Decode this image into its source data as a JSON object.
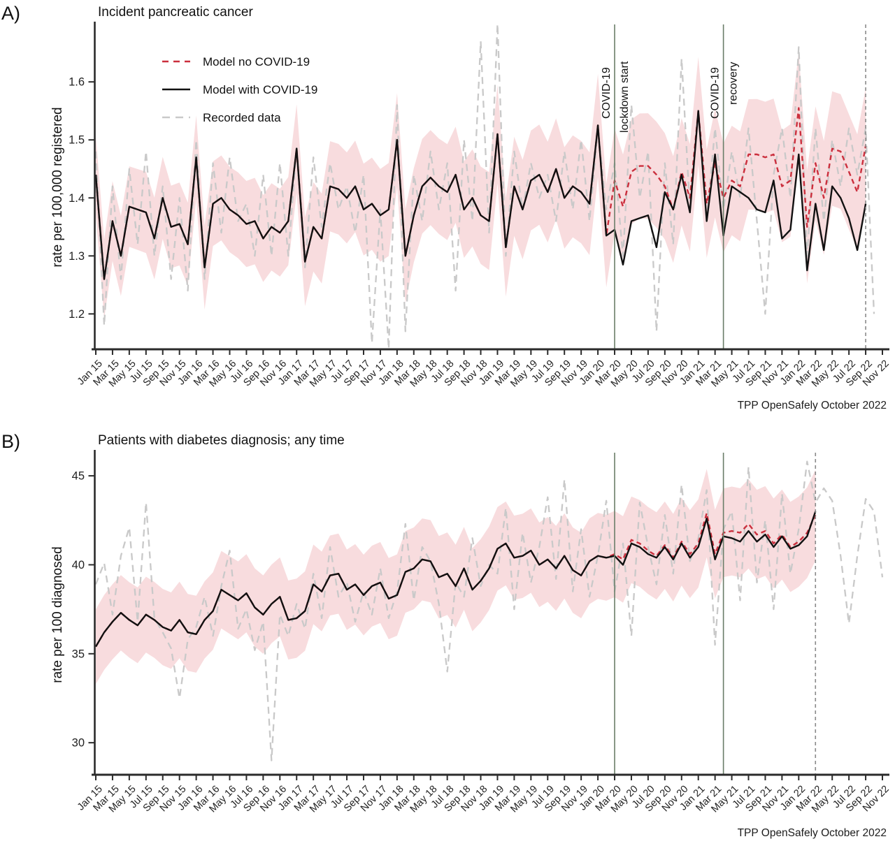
{
  "colors": {
    "model_no_covid": "#cb2f3d",
    "model_with_covid": "#111111",
    "recorded": "#c9c9c9",
    "ci_band": "#f8dcde",
    "event_line": "#6a7d68",
    "event_text": "#3f6b39",
    "model_end_line": "#8a8a8a",
    "axis": "#2b2b2b"
  },
  "legend": {
    "items": [
      {
        "label": "Model no COVID-19"
      },
      {
        "label": "Model with COVID-19"
      },
      {
        "label": "Recorded data"
      }
    ]
  },
  "x_tick_labels": [
    "Jan 15",
    "Mar 15",
    "May 15",
    "Jul 15",
    "Sep 15",
    "Nov 15",
    "Jan 16",
    "Mar 16",
    "May 16",
    "Jul 16",
    "Sep 16",
    "Nov 16",
    "Jan 17",
    "Mar 17",
    "May 17",
    "Jul 17",
    "Sep 17",
    "Nov 17",
    "Jan 18",
    "Mar 18",
    "May 18",
    "Jul 18",
    "Sep 18",
    "Nov 18",
    "Jan 19",
    "Mar 19",
    "May 19",
    "Jul 19",
    "Sep 19",
    "Nov 19",
    "Jan 20",
    "Mar 20",
    "May 20",
    "Jul 20",
    "Sep 20",
    "Nov 20",
    "Jan 21",
    "Mar 21",
    "May 21",
    "Jul 21",
    "Sep 21",
    "Nov 21",
    "Jan 22",
    "Mar 22",
    "May 22",
    "Jul 22",
    "Sep 22",
    "Nov 22"
  ],
  "chart_data": [
    {
      "type": "line",
      "panel_label": "A)",
      "title": "Incident pancreatic cancer",
      "ylabel": "rate per 100,000 registered",
      "source": "TPP OpenSafely October 2022",
      "x_months": {
        "start": "Jan 2015",
        "end": "Nov 2022",
        "step": "1 month"
      },
      "y_ticks": [
        1.2,
        1.3,
        1.4,
        1.5,
        1.6
      ],
      "y_tick_format": "1dp",
      "y_domain": [
        1.139,
        1.699
      ],
      "ci_half_width": [
        0.068,
        0.1
      ],
      "annotations": {
        "vlines": [
          {
            "month": 62,
            "type": "event",
            "labels": [
              "COVID-19",
              "lockdown start"
            ]
          },
          {
            "month": 75,
            "type": "event",
            "labels": [
              "COVID-19",
              "recovery"
            ]
          },
          {
            "month": 92,
            "type": "model-end",
            "labels": []
          }
        ]
      },
      "series": {
        "model_no_covid": {
          "name": "Model no COVID-19",
          "values": [
            1.44,
            1.26,
            1.36,
            1.3,
            1.385,
            1.38,
            1.375,
            1.33,
            1.4,
            1.35,
            1.355,
            1.32,
            1.47,
            1.28,
            1.39,
            1.4,
            1.38,
            1.37,
            1.355,
            1.36,
            1.33,
            1.35,
            1.34,
            1.36,
            1.485,
            1.29,
            1.35,
            1.33,
            1.42,
            1.415,
            1.4,
            1.42,
            1.38,
            1.39,
            1.37,
            1.38,
            1.5,
            1.3,
            1.37,
            1.42,
            1.435,
            1.42,
            1.41,
            1.44,
            1.38,
            1.4,
            1.37,
            1.36,
            1.51,
            1.315,
            1.42,
            1.38,
            1.43,
            1.44,
            1.41,
            1.45,
            1.4,
            1.42,
            1.41,
            1.39,
            1.525,
            1.335,
            1.43,
            1.385,
            1.445,
            1.455,
            1.455,
            1.44,
            1.42,
            1.38,
            1.445,
            1.4,
            1.55,
            1.39,
            1.46,
            1.4,
            1.43,
            1.42,
            1.475,
            1.475,
            1.47,
            1.475,
            1.42,
            1.43,
            1.555,
            1.35,
            1.46,
            1.4,
            1.485,
            1.48,
            1.445,
            1.41,
            1.49
          ]
        },
        "model_with_covid": {
          "name": "Model with COVID-19",
          "values": [
            1.44,
            1.26,
            1.36,
            1.3,
            1.385,
            1.38,
            1.375,
            1.33,
            1.4,
            1.35,
            1.355,
            1.32,
            1.47,
            1.28,
            1.39,
            1.4,
            1.38,
            1.37,
            1.355,
            1.36,
            1.33,
            1.35,
            1.34,
            1.36,
            1.485,
            1.29,
            1.35,
            1.33,
            1.42,
            1.415,
            1.4,
            1.42,
            1.38,
            1.39,
            1.37,
            1.38,
            1.5,
            1.3,
            1.37,
            1.42,
            1.435,
            1.42,
            1.41,
            1.44,
            1.38,
            1.4,
            1.37,
            1.36,
            1.51,
            1.315,
            1.42,
            1.38,
            1.43,
            1.44,
            1.41,
            1.45,
            1.4,
            1.42,
            1.41,
            1.39,
            1.525,
            1.335,
            1.345,
            1.285,
            1.36,
            1.365,
            1.37,
            1.315,
            1.41,
            1.38,
            1.44,
            1.375,
            1.55,
            1.36,
            1.475,
            1.335,
            1.42,
            1.41,
            1.4,
            1.38,
            1.375,
            1.43,
            1.33,
            1.345,
            1.475,
            1.275,
            1.39,
            1.31,
            1.42,
            1.4,
            1.365,
            1.31,
            1.39
          ]
        },
        "recorded": {
          "name": "Recorded data",
          "values": [
            1.48,
            1.18,
            1.42,
            1.26,
            1.45,
            1.32,
            1.48,
            1.3,
            1.42,
            1.26,
            1.4,
            1.24,
            1.5,
            1.26,
            1.46,
            1.34,
            1.47,
            1.36,
            1.39,
            1.3,
            1.44,
            1.3,
            1.46,
            1.3,
            1.49,
            1.28,
            1.47,
            1.35,
            1.46,
            1.38,
            1.42,
            1.34,
            1.44,
            1.15,
            1.38,
            1.14,
            1.56,
            1.17,
            1.44,
            1.36,
            1.48,
            1.38,
            1.46,
            1.24,
            1.5,
            1.36,
            1.67,
            1.34,
            1.7,
            1.3,
            1.48,
            1.38,
            1.46,
            1.4,
            1.44,
            1.36,
            1.48,
            1.38,
            1.5,
            1.36,
            1.52,
            1.38,
            1.46,
            1.3,
            1.56,
            1.4,
            1.48,
            1.17,
            1.46,
            1.32,
            1.64,
            1.38,
            1.55,
            1.36,
            1.52,
            1.38,
            1.48,
            1.4,
            1.52,
            1.36,
            1.2,
            1.44,
            1.52,
            1.4,
            1.66,
            1.3,
            1.52,
            1.36,
            1.5,
            1.42,
            1.52,
            1.44,
            1.52,
            1.2
          ]
        }
      }
    },
    {
      "type": "line",
      "panel_label": "B)",
      "title": "Patients with diabetes diagnosis; any time",
      "ylabel": "rate per 100 diagnosed",
      "source": "TPP OpenSafely October 2022",
      "x_months": {
        "start": "Jan 2015",
        "end": "Nov 2022",
        "step": "1 month"
      },
      "y_ticks": [
        30,
        35,
        40,
        45
      ],
      "y_tick_format": "int",
      "y_domain": [
        28.2,
        46.3
      ],
      "ci_half_width": [
        2.1,
        2.55
      ],
      "annotations": {
        "vlines": [
          {
            "month": 62,
            "type": "event",
            "labels": []
          },
          {
            "month": 75,
            "type": "event",
            "labels": []
          },
          {
            "month": 86,
            "type": "model-end",
            "labels": []
          }
        ]
      },
      "series": {
        "model_no_covid": {
          "name": "Model no COVID-19",
          "values": [
            35.4,
            36.2,
            36.8,
            37.3,
            36.9,
            36.6,
            37.2,
            36.9,
            36.5,
            36.3,
            36.9,
            36.2,
            36.1,
            36.9,
            37.4,
            38.6,
            38.3,
            38.0,
            38.4,
            37.6,
            37.2,
            37.8,
            38.2,
            36.9,
            37.0,
            37.4,
            38.9,
            38.5,
            39.4,
            39.5,
            38.6,
            38.9,
            38.3,
            38.8,
            39.0,
            38.1,
            38.3,
            39.6,
            39.8,
            40.3,
            40.2,
            39.3,
            39.5,
            38.8,
            39.8,
            38.6,
            39.1,
            39.8,
            40.9,
            41.2,
            40.4,
            40.5,
            40.8,
            40.0,
            40.3,
            39.8,
            40.5,
            39.7,
            39.4,
            40.2,
            40.5,
            40.4,
            40.6,
            40.3,
            41.4,
            41.2,
            40.8,
            40.5,
            41.1,
            40.4,
            41.3,
            40.6,
            41.2,
            42.9,
            40.6,
            41.8,
            41.9,
            41.8,
            42.3,
            41.7,
            41.9,
            41.2,
            41.7,
            41.0,
            41.3,
            41.8,
            42.8
          ]
        },
        "model_with_covid": {
          "name": "Model with COVID-19",
          "values": [
            35.4,
            36.2,
            36.8,
            37.3,
            36.9,
            36.6,
            37.2,
            36.9,
            36.5,
            36.3,
            36.9,
            36.2,
            36.1,
            36.9,
            37.4,
            38.6,
            38.3,
            38.0,
            38.4,
            37.6,
            37.2,
            37.8,
            38.2,
            36.9,
            37.0,
            37.4,
            38.9,
            38.5,
            39.4,
            39.5,
            38.6,
            38.9,
            38.3,
            38.8,
            39.0,
            38.1,
            38.3,
            39.6,
            39.8,
            40.3,
            40.2,
            39.3,
            39.5,
            38.8,
            39.8,
            38.6,
            39.1,
            39.8,
            40.9,
            41.2,
            40.4,
            40.5,
            40.8,
            40.0,
            40.3,
            39.8,
            40.5,
            39.7,
            39.4,
            40.2,
            40.5,
            40.4,
            40.5,
            40.0,
            41.2,
            41.0,
            40.6,
            40.4,
            41.0,
            40.3,
            41.2,
            40.4,
            41.0,
            42.6,
            40.3,
            41.6,
            41.5,
            41.3,
            41.9,
            41.3,
            41.7,
            41.0,
            41.6,
            40.9,
            41.1,
            41.6,
            43.0
          ]
        },
        "recorded": {
          "name": "Recorded data",
          "values": [
            38.9,
            40.1,
            37.2,
            40.5,
            42.1,
            36.8,
            43.5,
            37.0,
            36.2,
            35.3,
            32.5,
            35.8,
            36.5,
            38.2,
            36.0,
            38.8,
            40.8,
            36.4,
            37.5,
            35.2,
            36.8,
            29.0,
            37.2,
            36.0,
            37.8,
            36.4,
            39.5,
            37.0,
            41.0,
            38.2,
            39.0,
            36.8,
            38.5,
            37.2,
            39.8,
            37.0,
            38.5,
            42.3,
            38.0,
            41.0,
            40.2,
            37.8,
            34.0,
            39.0,
            38.2,
            41.5,
            38.8,
            40.0,
            39.5,
            43.2,
            37.5,
            41.8,
            39.0,
            41.0,
            43.8,
            39.2,
            44.8,
            38.5,
            42.0,
            38.2,
            40.5,
            43.6,
            38.5,
            41.2,
            36.0,
            43.5,
            41.0,
            38.9,
            42.8,
            39.5,
            44.5,
            40.2,
            41.5,
            44.2,
            35.5,
            42.0,
            43.0,
            38.0,
            45.5,
            39.0,
            42.5,
            37.5,
            44.0,
            39.5,
            42.0,
            45.8,
            43.5,
            44.3,
            43.6,
            40.5,
            36.7,
            40.5,
            43.7,
            43.0,
            39.3
          ]
        }
      }
    }
  ]
}
